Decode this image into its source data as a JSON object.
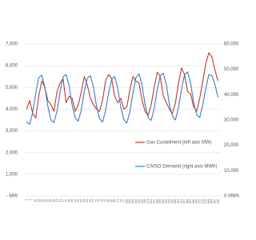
{
  "chart_data": {
    "type": "line",
    "x": [
      1,
      4,
      7,
      10,
      13,
      16,
      19,
      22,
      25,
      28,
      31,
      34,
      37,
      40,
      43,
      46,
      49,
      52,
      55,
      58,
      61,
      64,
      67,
      70,
      73,
      76,
      79,
      82,
      85,
      88,
      91,
      94,
      97,
      100,
      103,
      106,
      109,
      112,
      115,
      118,
      121,
      124,
      127,
      130,
      133,
      136,
      139,
      142,
      145,
      148,
      151,
      154,
      157,
      160,
      163,
      166,
      169,
      172,
      175,
      178,
      181,
      184,
      187,
      190
    ],
    "xlim": [
      0,
      192
    ],
    "xticks": [
      1,
      4,
      7,
      10,
      13,
      16,
      19,
      22,
      25,
      28,
      31,
      34,
      37,
      40,
      43,
      46,
      49,
      52,
      55,
      58,
      61,
      64,
      67,
      70,
      73,
      76,
      79,
      82,
      85,
      88,
      91,
      94,
      97,
      100,
      103,
      106,
      109,
      112,
      115,
      118,
      121,
      124,
      127,
      130,
      133,
      136,
      139,
      142,
      145,
      148,
      151,
      154,
      157,
      160,
      163,
      166,
      169,
      172,
      175,
      178,
      181,
      184,
      187,
      190
    ],
    "series": [
      {
        "name": "Gas Curtailment (left axis MW)",
        "color": "#c0392b",
        "values": [
          4000,
          4400,
          3800,
          3600,
          4600,
          5300,
          5000,
          4400,
          4200,
          3900,
          4800,
          5200,
          5400,
          4300,
          4600,
          4500,
          3900,
          4200,
          4800,
          5500,
          5100,
          4500,
          4200,
          4000,
          3900,
          4400,
          5300,
          5600,
          5400,
          4600,
          4300,
          4500,
          4000,
          4100,
          4900,
          5500,
          5300,
          5200,
          4400,
          3900,
          3700,
          4200,
          5000,
          5700,
          5500,
          4600,
          4300,
          4000,
          3800,
          4300,
          5200,
          5900,
          5600,
          4800,
          4700,
          4100,
          3900,
          4500,
          5300,
          6100,
          6600,
          6400,
          5800,
          5300
        ]
      },
      {
        "name": "CAISO Demand (right axis MWh)",
        "color": "#3a7bc8",
        "axis": "y2",
        "values": [
          29300,
          28300,
          33000,
          40600,
          46700,
          47700,
          43000,
          35400,
          30000,
          29000,
          33500,
          41000,
          47000,
          48000,
          43500,
          35800,
          31000,
          29500,
          34000,
          41500,
          46500,
          47500,
          43000,
          35500,
          30500,
          29200,
          33800,
          40800,
          46000,
          47200,
          42500,
          35000,
          30200,
          28800,
          33200,
          40500,
          46800,
          48200,
          43800,
          36000,
          31000,
          29800,
          34500,
          41800,
          47500,
          48500,
          44000,
          36200,
          31500,
          30000,
          35000,
          42000,
          48000,
          49000,
          44500,
          36800,
          32000,
          31000,
          36000,
          42500,
          48000,
          47500,
          44000,
          39000
        ]
      }
    ],
    "ylim": [
      0,
      7000
    ],
    "yticks": [
      {
        "value": 0,
        "label": "- MW"
      },
      {
        "value": 1000,
        "label": "1,000"
      },
      {
        "value": 2000,
        "label": "2,000"
      },
      {
        "value": 3000,
        "label": "3,000"
      },
      {
        "value": 4000,
        "label": "4,000"
      },
      {
        "value": 5000,
        "label": "5,000"
      },
      {
        "value": 6000,
        "label": "6,000"
      },
      {
        "value": 7000,
        "label": "7,000"
      }
    ],
    "y2lim": [
      0,
      60000
    ],
    "y2ticks": [
      {
        "value": 0,
        "label": "0 MWh"
      },
      {
        "value": 10000,
        "label": "10,000"
      },
      {
        "value": 20000,
        "label": "20,000"
      },
      {
        "value": 30000,
        "label": "30,000"
      },
      {
        "value": 40000,
        "label": "40,000"
      },
      {
        "value": 50000,
        "label": "50,000"
      },
      {
        "value": 60000,
        "label": "60,000"
      }
    ],
    "grid": true,
    "legend": "right"
  }
}
